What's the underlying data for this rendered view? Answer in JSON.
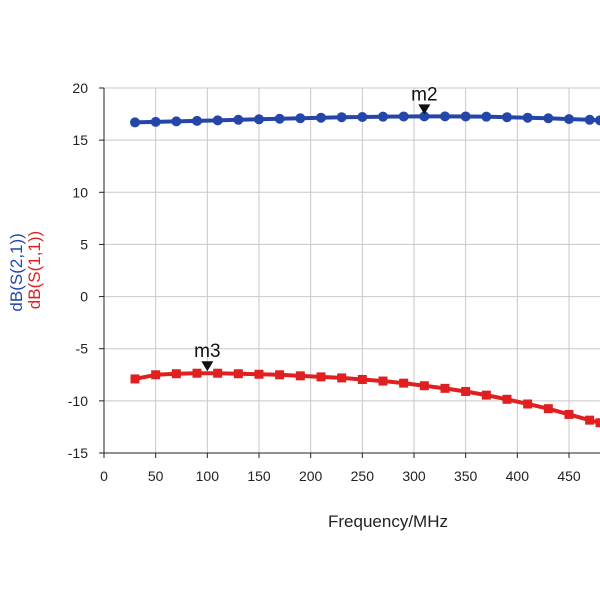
{
  "chart_data": {
    "type": "line",
    "xlabel": "Frequency/MHz",
    "ylabels": [
      {
        "text": "dB(S(2,1))",
        "color": "#2346a8"
      },
      {
        "text": "dB(S(1,1))",
        "color": "#e02020"
      }
    ],
    "xlim": [
      0,
      480
    ],
    "ylim": [
      -15,
      20
    ],
    "xticks": [
      0,
      50,
      100,
      150,
      200,
      250,
      300,
      350,
      400,
      450
    ],
    "yticks": [
      -15,
      -10,
      -5,
      0,
      5,
      10,
      15,
      20
    ],
    "grid": true,
    "x": [
      30,
      50,
      70,
      90,
      110,
      130,
      150,
      170,
      190,
      210,
      230,
      250,
      270,
      290,
      310,
      330,
      350,
      370,
      390,
      410,
      430,
      450,
      470,
      480
    ],
    "series": [
      {
        "name": "dB(S(2,1))",
        "color": "#2346a8",
        "marker": "circle",
        "values": [
          16.7,
          16.75,
          16.8,
          16.85,
          16.9,
          16.95,
          17.0,
          17.05,
          17.1,
          17.15,
          17.2,
          17.22,
          17.25,
          17.27,
          17.28,
          17.28,
          17.27,
          17.25,
          17.2,
          17.15,
          17.1,
          17.02,
          16.95,
          16.9
        ]
      },
      {
        "name": "dB(S(1,1))",
        "color": "#e02020",
        "marker": "square",
        "values": [
          -7.9,
          -7.5,
          -7.4,
          -7.35,
          -7.35,
          -7.4,
          -7.45,
          -7.5,
          -7.6,
          -7.7,
          -7.8,
          -7.95,
          -8.1,
          -8.3,
          -8.55,
          -8.8,
          -9.1,
          -9.45,
          -9.85,
          -10.3,
          -10.75,
          -11.3,
          -11.85,
          -12.1
        ]
      }
    ],
    "markers": [
      {
        "label": "m2",
        "x": 310,
        "y": 17.28,
        "series": "dB(S(2,1))"
      },
      {
        "label": "m3",
        "x": 100,
        "y": -7.35,
        "series": "dB(S(1,1))"
      }
    ]
  }
}
